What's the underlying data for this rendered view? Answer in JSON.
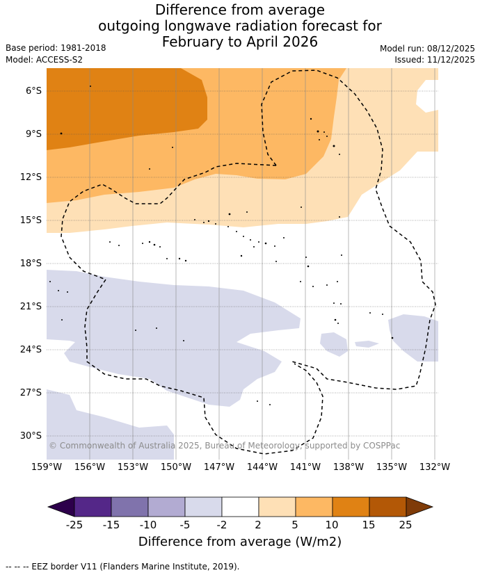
{
  "title": {
    "line1": "Difference from average",
    "line2": "outgoing longwave radiation forecast for",
    "line3": "February to April 2026"
  },
  "meta": {
    "base_period": "Base period: 1981-2018",
    "model": "Model: ACCESS-S2",
    "model_run": "Model run: 08/12/2025",
    "issued": "Issued: 11/12/2025"
  },
  "map": {
    "latitude_labels": [
      "6°S",
      "9°S",
      "12°S",
      "15°S",
      "18°S",
      "21°S",
      "24°S",
      "27°S",
      "30°S"
    ],
    "longitude_labels": [
      "159°W",
      "156°W",
      "153°W",
      "150°W",
      "147°W",
      "144°W",
      "141°W",
      "138°W",
      "135°W",
      "132°W"
    ],
    "copyright": "© Commonwealth of Australia 2025, Bureau of Meteorology, supported by COSPPac",
    "region_categories": [
      "10 to 15",
      "5 to 10",
      "2 to 5",
      "-2 to 2",
      "-5 to -2"
    ]
  },
  "colorbar": {
    "ticks": [
      "-25",
      "-15",
      "-10",
      "-5",
      "-2",
      "2",
      "5",
      "10",
      "15",
      "25"
    ],
    "colors": {
      "below_min": "#2d004b",
      "m25_m15": "#542788",
      "m15_m10": "#8073ac",
      "m10_m5": "#b2abd2",
      "m5_m2": "#d8daeb",
      "m2_2": "#ffffff",
      "p2_5": "#fee0b6",
      "p5_10": "#fdb863",
      "p10_15": "#e08214",
      "p15_25": "#b35806",
      "above_max": "#7f3b08"
    },
    "label": "Difference from average (W/m2)"
  },
  "footer": {
    "legend": "--  --  -- EEZ border V11 (Flanders Marine Institute, 2019)."
  }
}
